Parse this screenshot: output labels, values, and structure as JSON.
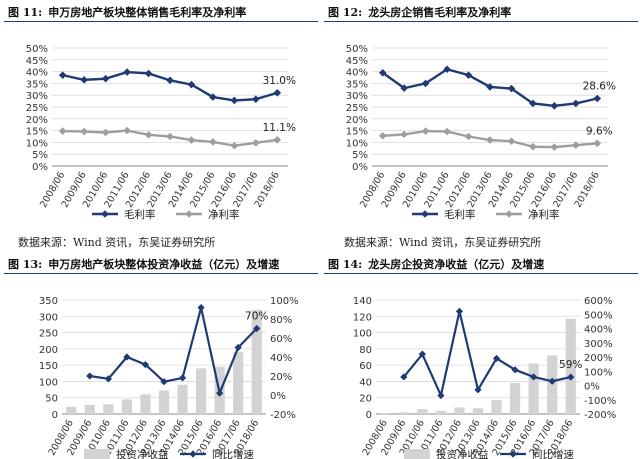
{
  "charts": [
    {
      "number": "图 11:",
      "title": "申万房地产板块整体销售毛利率及净利率",
      "chart_data": {
        "type": "line",
        "categories": [
          "2008/06",
          "2009/06",
          "2010/06",
          "2011/06",
          "2012/06",
          "2013/06",
          "2014/06",
          "2015/06",
          "2016/06",
          "2017/06",
          "2018/06"
        ],
        "ylim": [
          0,
          50
        ],
        "yticks": [
          "0%",
          "5%",
          "10%",
          "15%",
          "20%",
          "25%",
          "30%",
          "35%",
          "40%",
          "45%",
          "50%"
        ],
        "grid": true,
        "legend_position": "bottom",
        "series": [
          {
            "name": "毛利率",
            "color": "#1f3b73",
            "values": [
              38.5,
              36.5,
              37.0,
              39.8,
              39.2,
              36.3,
              34.5,
              29.2,
              27.8,
              28.3,
              31.0
            ]
          },
          {
            "name": "净利率",
            "color": "#9e9e9e",
            "values": [
              14.8,
              14.6,
              14.2,
              15.0,
              13.2,
              12.5,
              11.0,
              10.2,
              8.6,
              9.8,
              11.1
            ]
          }
        ],
        "annotations": [
          {
            "series": 0,
            "index": 10,
            "text": "31.0%"
          },
          {
            "series": 1,
            "index": 10,
            "text": "11.1%"
          }
        ]
      }
    },
    {
      "number": "图 12:",
      "title": "龙头房企销售毛利率及净利率",
      "chart_data": {
        "type": "line",
        "categories": [
          "2008/06",
          "2009/06",
          "2010/06",
          "2011/06",
          "2012/06",
          "2013/06",
          "2014/06",
          "2015/06",
          "2016/06",
          "2017/06",
          "2018/06"
        ],
        "ylim": [
          0,
          50
        ],
        "yticks": [
          "0%",
          "5%",
          "10%",
          "15%",
          "20%",
          "25%",
          "30%",
          "35%",
          "40%",
          "45%",
          "50%"
        ],
        "grid": true,
        "legend_position": "bottom",
        "series": [
          {
            "name": "毛利率",
            "color": "#1f3b73",
            "values": [
              39.5,
              33.0,
              35.0,
              41.0,
              38.5,
              33.5,
              32.8,
              26.5,
              25.5,
              26.5,
              28.6
            ]
          },
          {
            "name": "净利率",
            "color": "#9e9e9e",
            "values": [
              12.8,
              13.4,
              14.8,
              14.6,
              12.5,
              11.0,
              10.5,
              8.2,
              8.0,
              8.8,
              9.6
            ]
          }
        ],
        "annotations": [
          {
            "series": 0,
            "index": 10,
            "text": "28.6%"
          },
          {
            "series": 1,
            "index": 10,
            "text": "9.6%"
          }
        ]
      }
    },
    {
      "number": "图 13:",
      "title": "申万房地产板块整体投资净收益（亿元）及增速",
      "chart_data": {
        "type": "bar",
        "categories": [
          "2008/06",
          "2009/06",
          "2010/06",
          "2011/06",
          "2012/06",
          "2013/06",
          "2014/06",
          "2015/06",
          "2016/06",
          "2017/06",
          "2018/06"
        ],
        "ylim": [
          0,
          350
        ],
        "yticks": [
          "0",
          "50",
          "100",
          "150",
          "200",
          "250",
          "300",
          "350"
        ],
        "y2lim": [
          -20,
          100
        ],
        "y2ticks": [
          "-20%",
          "0%",
          "20%",
          "40%",
          "60%",
          "80%",
          "100%"
        ],
        "grid": true,
        "legend_position": "bottom",
        "series": [
          {
            "name": "投资净收益",
            "type": "bar",
            "color": "#d3d3d3",
            "axis": "left",
            "values": [
              22,
              28,
              30,
              45,
              60,
              72,
              90,
              140,
              145,
              190,
              320
            ]
          },
          {
            "name": "同比增速",
            "type": "line",
            "color": "#1f3b73",
            "axis": "right",
            "values": [
              null,
              20,
              17,
              40,
              32,
              14,
              18,
              92,
              2,
              50,
              70
            ]
          }
        ],
        "annotations": [
          {
            "series": 1,
            "index": 10,
            "text": "70%"
          }
        ]
      }
    },
    {
      "number": "图 14:",
      "title": "龙头房企投资净收益（亿元）及增速",
      "chart_data": {
        "type": "bar",
        "categories": [
          "2008/06",
          "2009/06",
          "2010/06",
          "2011/06",
          "2012/06",
          "2013/06",
          "2014/06",
          "2015/06",
          "2016/06",
          "2017/06",
          "2018/06"
        ],
        "ylim": [
          0,
          140
        ],
        "yticks": [
          "0",
          "20",
          "40",
          "60",
          "80",
          "100",
          "120",
          "140"
        ],
        "y2lim": [
          -200,
          600
        ],
        "y2ticks": [
          "-200%",
          "-100%",
          "0%",
          "100%",
          "200%",
          "300%",
          "400%",
          "500%",
          "600%"
        ],
        "grid": true,
        "legend_position": "bottom",
        "series": [
          {
            "name": "投资净收益",
            "type": "bar",
            "color": "#d3d3d3",
            "axis": "left",
            "values": [
              1,
              2,
              6,
              4,
              8,
              7,
              17,
              38,
              62,
              72,
              117
            ]
          },
          {
            "name": "同比增速",
            "type": "line",
            "color": "#1f3b73",
            "axis": "right",
            "values": [
              null,
              60,
              220,
              -70,
              520,
              -30,
              190,
              110,
              60,
              30,
              59
            ]
          }
        ],
        "annotations": [
          {
            "series": 1,
            "index": 10,
            "text": "59%"
          }
        ]
      }
    }
  ],
  "sources": [
    "数据来源：Wind 资讯，东吴证券研究所",
    "数据来源：Wind 资讯，东吴证券研究所"
  ]
}
